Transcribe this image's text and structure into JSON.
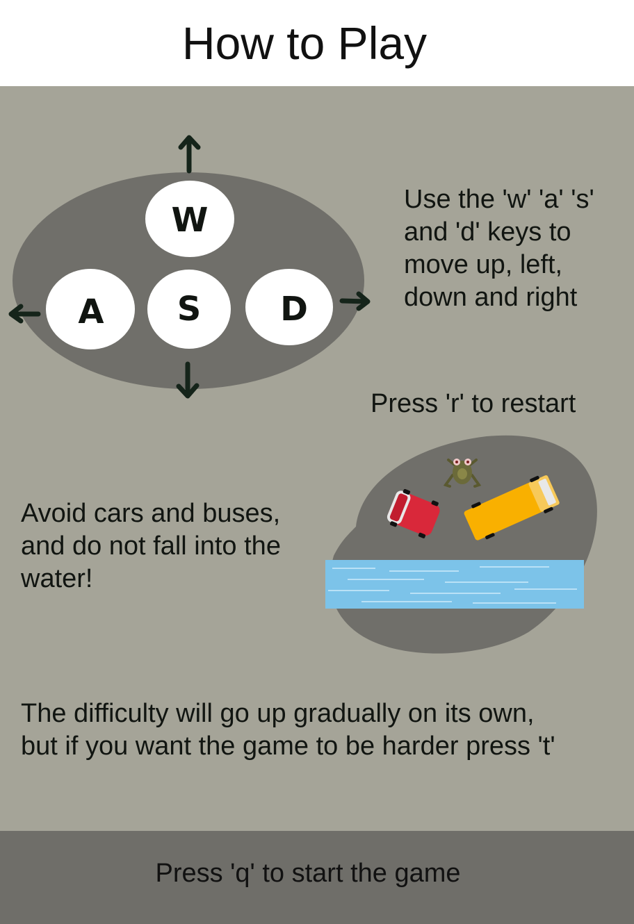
{
  "header": {
    "title": "How to Play"
  },
  "controls": {
    "keys": {
      "up": "W",
      "left": "A",
      "down": "S",
      "right": "D"
    },
    "instruction": "Use the 'w' 'a' 's'\nand 'd' keys to\nmove up, left,\ndown and right"
  },
  "restart": {
    "text": "Press 'r' to restart"
  },
  "hazards": {
    "text": "Avoid cars and buses,\nand do not fall into the\nwater!"
  },
  "difficulty": {
    "text": "The difficulty will go up gradually on its own,\nbut if you want the game to be harder press 't'"
  },
  "footer": {
    "start_text": "Press 'q' to start the game"
  },
  "colors": {
    "background": "#a5a498",
    "road": "#706f6a",
    "water": "#7cc3e9",
    "car": "#d9283a",
    "bus": "#f9b000",
    "frog": "#6b6a3a",
    "key": "#ffffff",
    "arrow": "#15241a"
  }
}
